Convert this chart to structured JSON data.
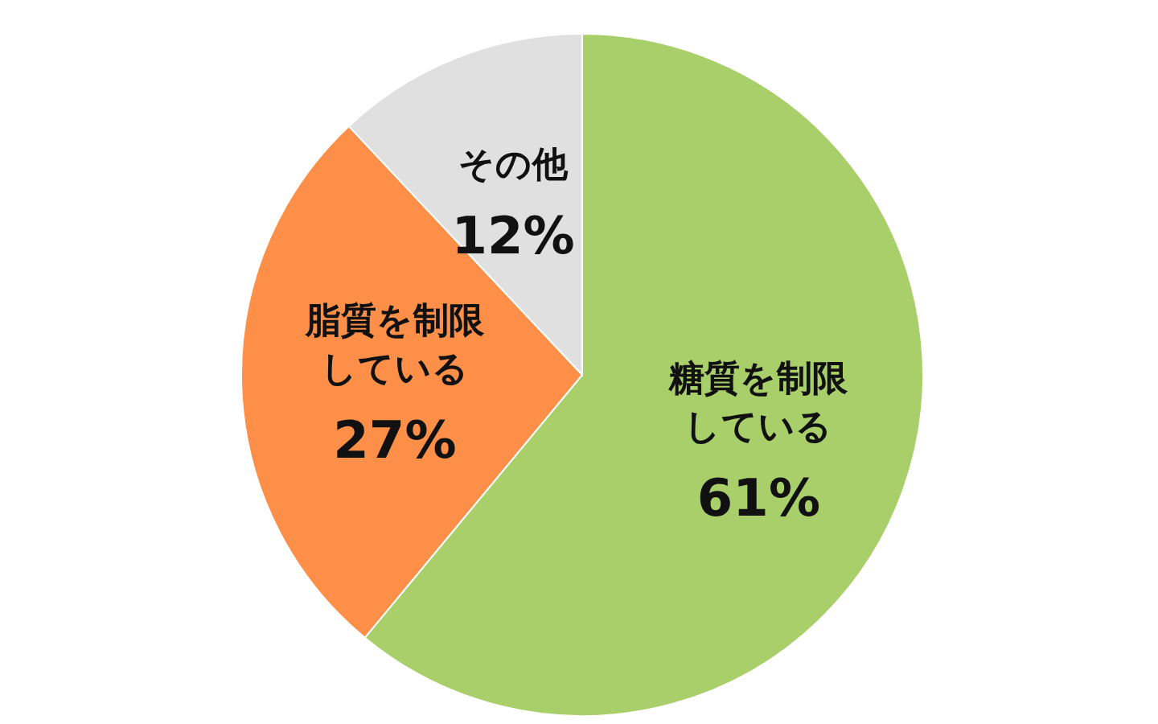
{
  "chart_data": {
    "type": "pie",
    "categories": [
      "糖質を制限している",
      "脂質を制限している",
      "その他"
    ],
    "values": [
      61,
      27,
      12
    ],
    "value_labels": [
      "61%",
      "27%",
      "12%"
    ],
    "colors": [
      "#a9cf6a",
      "#fd8f49",
      "#e0e0e0"
    ]
  }
}
